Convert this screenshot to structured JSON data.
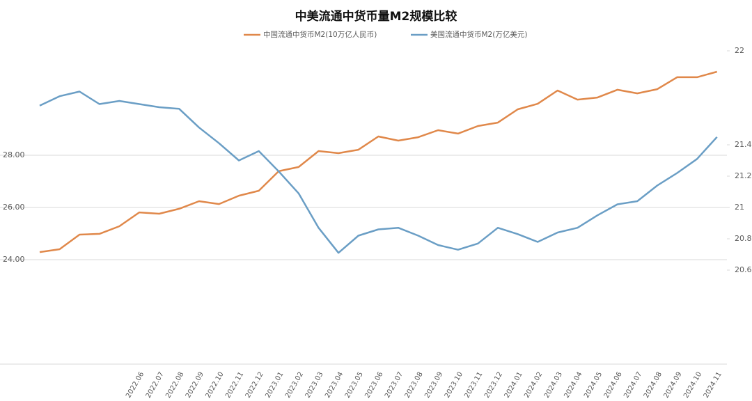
{
  "chart_data": {
    "type": "line",
    "title": "中美流通中货币量M2规模比较",
    "categories": [
      null,
      null,
      null,
      null,
      null,
      "2022.06",
      "2022.07",
      "2022.08",
      "2022.09",
      "2022.10",
      "2022.11",
      "2022.12",
      "2023.01",
      "2023.02",
      "2023.03",
      "2023.04",
      "2023.05",
      "2023.06",
      "2023.07",
      "2023.08",
      "2023.09",
      "2023.10",
      "2023.11",
      "2023.12",
      "2024.01",
      "2024.02",
      "2024.03",
      "2024.04",
      "2024.05",
      "2024.06",
      "2024.07",
      "2024.08",
      "2024.09",
      "2024.10",
      "2024.11"
    ],
    "series": [
      {
        "name": "中国流通中货币M2(10万亿人民币)",
        "color": "#e0884a",
        "axis": "y",
        "values": [
          24.29,
          24.4,
          24.96,
          24.99,
          25.28,
          25.81,
          25.76,
          25.95,
          26.24,
          26.13,
          26.45,
          26.64,
          27.39,
          27.55,
          28.16,
          28.08,
          28.21,
          28.72,
          28.56,
          28.69,
          28.96,
          28.83,
          29.12,
          29.25,
          29.76,
          29.97,
          30.48,
          30.13,
          30.21,
          30.51,
          30.37,
          30.53,
          30.99,
          30.99,
          31.2
        ]
      },
      {
        "name": "美国流通中货币M2(万亿美元)",
        "color": "#6a9ec5",
        "axis": "y2",
        "values": [
          21.65,
          21.71,
          21.74,
          21.66,
          21.68,
          21.66,
          21.64,
          21.63,
          21.51,
          21.41,
          21.3,
          21.36,
          21.23,
          21.09,
          20.87,
          20.71,
          20.82,
          20.86,
          20.87,
          20.82,
          20.76,
          20.73,
          20.77,
          20.87,
          20.83,
          20.78,
          20.84,
          20.87,
          20.95,
          21.02,
          21.04,
          21.14,
          21.22,
          21.31,
          21.45
        ]
      }
    ],
    "ylim": [
      20,
      32
    ],
    "yticks": [
      {
        "value": 24,
        "label": "24.00"
      },
      {
        "value": 26,
        "label": "26.00"
      },
      {
        "value": 28,
        "label": "28.00"
      }
    ],
    "y2lim": [
      20,
      22
    ],
    "y2ticks": [
      20.6,
      20.8,
      21,
      21.2,
      21.4,
      22
    ],
    "grid": true,
    "legend": "top"
  }
}
